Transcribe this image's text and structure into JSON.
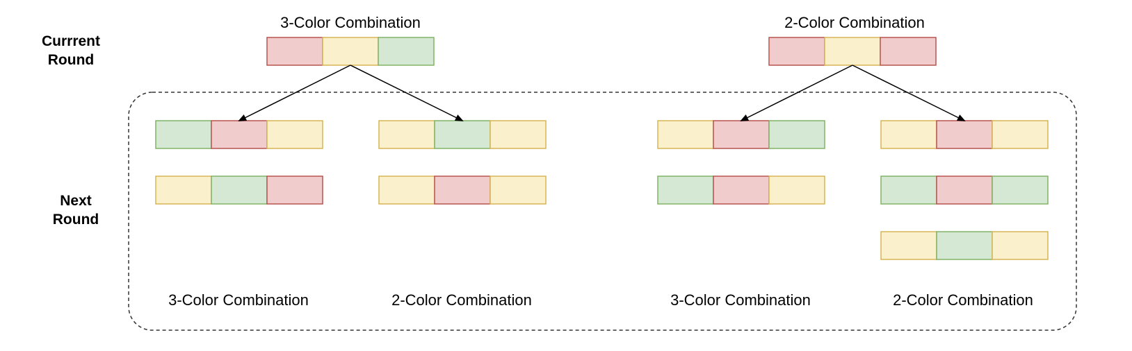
{
  "row_labels": {
    "current_line1": "Currrent",
    "current_line2": "Round",
    "next_line1": "Next",
    "next_line2": "Round"
  },
  "palette": {
    "red": {
      "fill": "#f0cccc",
      "stroke": "#b85450"
    },
    "yellow": {
      "fill": "#fbf0cc",
      "stroke": "#d6b656"
    },
    "green": {
      "fill": "#d5e8d4",
      "stroke": "#82b366"
    }
  },
  "current_round": [
    {
      "title": "3-Color Combination",
      "cells": [
        "red",
        "yellow",
        "green"
      ]
    },
    {
      "title": "2-Color Combination",
      "cells": [
        "red",
        "yellow",
        "red"
      ]
    }
  ],
  "next_round": [
    {
      "caption": "3-Color Combination",
      "combos": [
        [
          "green",
          "red",
          "yellow"
        ],
        [
          "yellow",
          "green",
          "red"
        ]
      ]
    },
    {
      "caption": "2-Color Combination",
      "combos": [
        [
          "yellow",
          "green",
          "yellow"
        ],
        [
          "yellow",
          "red",
          "yellow"
        ]
      ]
    },
    {
      "caption": "3-Color Combination",
      "combos": [
        [
          "yellow",
          "red",
          "green"
        ],
        [
          "green",
          "red",
          "yellow"
        ]
      ]
    },
    {
      "caption": "2-Color Combination",
      "combos": [
        [
          "yellow",
          "red",
          "yellow"
        ],
        [
          "green",
          "red",
          "green"
        ],
        [
          "yellow",
          "green",
          "yellow"
        ]
      ]
    }
  ]
}
